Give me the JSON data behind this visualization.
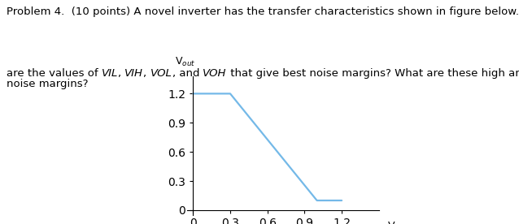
{
  "title_text_line1": "Problem 4.  (10 points) A novel inverter has the transfer characteristics shown in figure below. What",
  "title_text_line2": "are the values of ",
  "title_text_line2_italic1": "VIL",
  "title_text_line2_mid1": ", ",
  "title_text_line2_italic2": "VIH",
  "title_text_line2_mid2": ", ",
  "title_text_line2_italic3": "VOL",
  "title_text_line2_mid3": ", and ",
  "title_text_line2_italic4": "VOH",
  "title_text_line2_end": " that give best noise margins? What are these high and low",
  "title_text_line3": "noise margins?",
  "xlabel": "V$_{in}$",
  "ylabel": "V$_{out}$",
  "x_ticks": [
    0,
    0.3,
    0.6,
    0.9,
    1.2
  ],
  "y_ticks": [
    0,
    0.3,
    0.6,
    0.9,
    1.2
  ],
  "x_data": [
    0,
    0.3,
    1.0,
    1.2
  ],
  "y_data": [
    1.2,
    1.2,
    0.1,
    0.1
  ],
  "line_color": "#74b9e8",
  "line_width": 1.6,
  "xlim": [
    -0.05,
    1.5
  ],
  "ylim": [
    -0.05,
    1.38
  ],
  "fig_width": 6.38,
  "fig_height": 2.76,
  "text_fontsize": 9.5,
  "axis_label_fontsize": 9,
  "tick_fontsize": 8.5
}
